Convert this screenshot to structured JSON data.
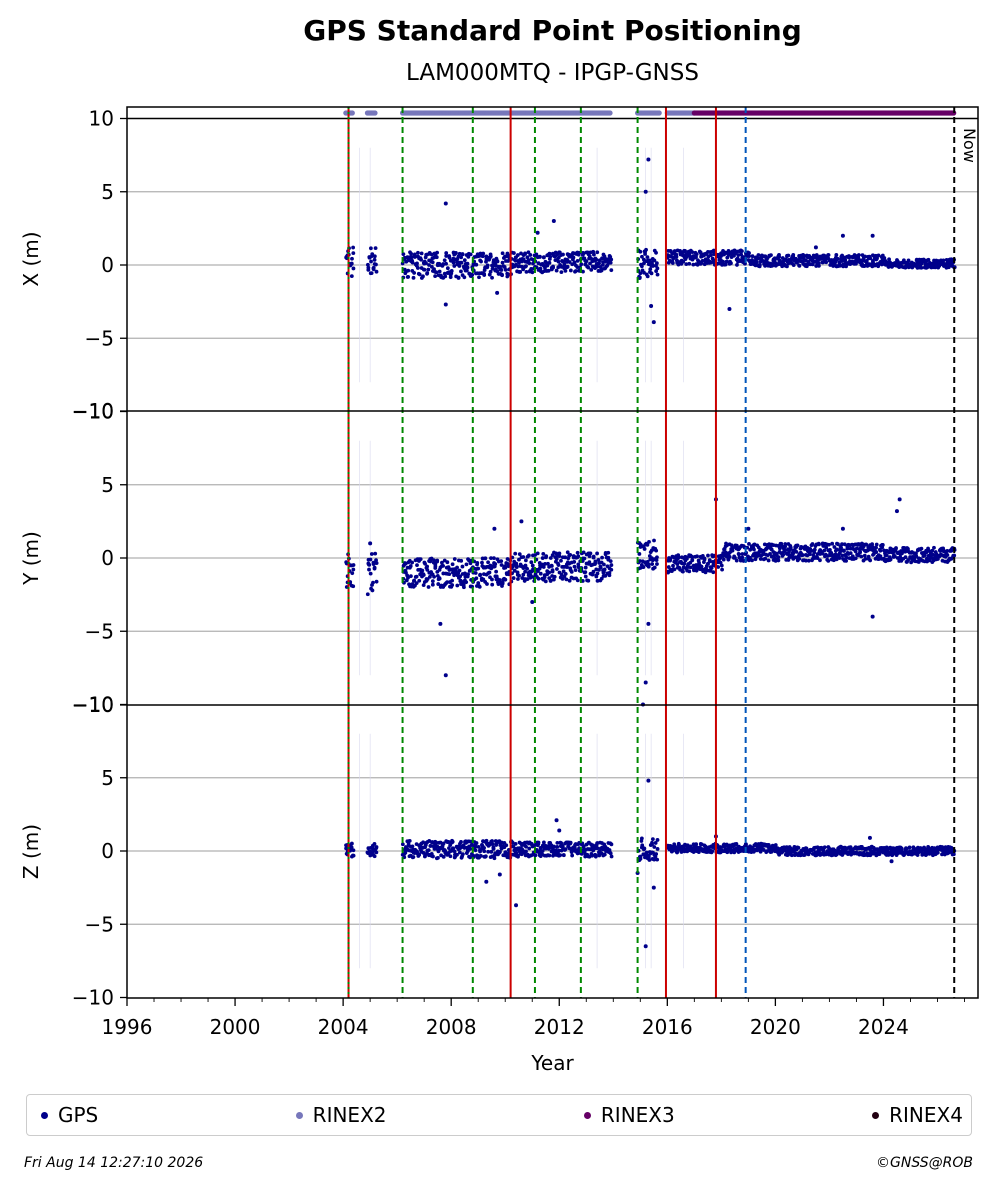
{
  "chart_data": {
    "type": "scatter",
    "title": "GPS Standard Point Positioning",
    "subtitle": "LAM000MTQ - IPGP-GNSS",
    "xlabel": "Year",
    "xlim": [
      1996,
      2027.5
    ],
    "x_ticks": [
      "1996",
      "2000",
      "2004",
      "2008",
      "2012",
      "2016",
      "2020",
      "2024"
    ],
    "now_label": "Now",
    "now_year": 2026.62,
    "grid": true,
    "legend_placement": "bottom",
    "panels": [
      {
        "id": "x",
        "ylabel": "X (m)",
        "ylim": [
          -10,
          10
        ],
        "y_ticks": [
          "10",
          "5",
          "0",
          "−5",
          "−10"
        ]
      },
      {
        "id": "y",
        "ylabel": "Y (m)",
        "ylim": [
          -10,
          10
        ],
        "y_ticks": [
          "5",
          "0",
          "−5",
          "−10"
        ]
      },
      {
        "id": "z",
        "ylabel": "Z (m)",
        "ylim": [
          -10,
          10
        ],
        "y_ticks": [
          "5",
          "0",
          "−5",
          "−10"
        ]
      }
    ],
    "event_lines": [
      {
        "year": 2004.2,
        "color": "#cc0000",
        "style": "dotted-red-green"
      },
      {
        "year": 2006.2,
        "color": "#008800",
        "style": "dashed"
      },
      {
        "year": 2008.8,
        "color": "#008800",
        "style": "dashed"
      },
      {
        "year": 2010.2,
        "color": "#cc0000",
        "style": "solid"
      },
      {
        "year": 2011.1,
        "color": "#008800",
        "style": "dashed"
      },
      {
        "year": 2012.8,
        "color": "#008800",
        "style": "dashed"
      },
      {
        "year": 2014.9,
        "color": "#008800",
        "style": "dashed"
      },
      {
        "year": 2015.95,
        "color": "#cc0000",
        "style": "solid"
      },
      {
        "year": 2017.8,
        "color": "#cc0000",
        "style": "solid"
      },
      {
        "year": 2018.9,
        "color": "#0055bb",
        "style": "dashed"
      },
      {
        "year": 2026.62,
        "color": "#000000",
        "style": "dashed"
      }
    ],
    "data_segments": [
      {
        "from": 2004.1,
        "to": 2004.35
      },
      {
        "from": 2004.9,
        "to": 2005.2
      },
      {
        "from": 2006.2,
        "to": 2013.9
      },
      {
        "from": 2014.9,
        "to": 2015.6
      },
      {
        "from": 2016.0,
        "to": 2026.6
      }
    ],
    "series": [
      {
        "name": "GPS",
        "color": "#00008b",
        "x_profile": [
          [
            2004.2,
            0.2,
            1.0
          ],
          [
            2006.2,
            0.0,
            0.9
          ],
          [
            2010.2,
            0.2,
            0.7
          ],
          [
            2014.9,
            0.1,
            1.0
          ],
          [
            2016.0,
            0.5,
            0.5
          ],
          [
            2019.0,
            0.3,
            0.4
          ],
          [
            2024.0,
            0.1,
            0.3
          ]
        ],
        "y_profile": [
          [
            2004.2,
            -1.0,
            1.5
          ],
          [
            2006.2,
            -1.0,
            1.0
          ],
          [
            2010.2,
            -0.6,
            1.0
          ],
          [
            2014.9,
            0.2,
            1.0
          ],
          [
            2016.0,
            -0.4,
            0.6
          ],
          [
            2018.0,
            0.4,
            0.6
          ],
          [
            2024.0,
            0.2,
            0.5
          ]
        ],
        "z_profile": [
          [
            2004.2,
            0.1,
            0.5
          ],
          [
            2006.2,
            0.1,
            0.6
          ],
          [
            2010.2,
            0.1,
            0.5
          ],
          [
            2014.9,
            0.1,
            0.8
          ],
          [
            2016.0,
            0.2,
            0.3
          ],
          [
            2020.0,
            0.0,
            0.3
          ],
          [
            2024.0,
            0.0,
            0.3
          ]
        ],
        "outliers": {
          "x": [
            [
              2007.8,
              4.2
            ],
            [
              2007.8,
              -2.7
            ],
            [
              2011.8,
              3.0
            ],
            [
              2015.3,
              7.2
            ],
            [
              2015.2,
              5.0
            ],
            [
              2015.4,
              -2.8
            ],
            [
              2015.5,
              -3.9
            ],
            [
              2018.3,
              -3.0
            ],
            [
              2022.5,
              2.0
            ],
            [
              2023.6,
              2.0
            ],
            [
              2009.7,
              -1.9
            ],
            [
              2011.2,
              2.2
            ],
            [
              2021.5,
              1.2
            ]
          ],
          "y": [
            [
              2007.8,
              -8.0
            ],
            [
              2007.6,
              -4.5
            ],
            [
              2009.6,
              2.0
            ],
            [
              2010.6,
              2.5
            ],
            [
              2015.2,
              -8.5
            ],
            [
              2015.1,
              -10.0
            ],
            [
              2015.3,
              -4.5
            ],
            [
              2017.8,
              4.0
            ],
            [
              2019.0,
              2.0
            ],
            [
              2023.6,
              -4.0
            ],
            [
              2024.6,
              4.0
            ],
            [
              2024.5,
              3.2
            ],
            [
              2005.0,
              1.0
            ],
            [
              2011.0,
              -3.0
            ],
            [
              2022.5,
              2.0
            ]
          ],
          "z": [
            [
              2010.4,
              -3.7
            ],
            [
              2015.3,
              4.8
            ],
            [
              2015.2,
              -6.5
            ],
            [
              2015.5,
              -2.5
            ],
            [
              2009.3,
              -2.1
            ],
            [
              2011.9,
              2.1
            ],
            [
              2014.9,
              -1.5
            ],
            [
              2017.8,
              1.0
            ],
            [
              2023.5,
              0.9
            ],
            [
              2024.3,
              -0.7
            ],
            [
              2009.8,
              -1.6
            ],
            [
              2012.0,
              1.4
            ]
          ]
        }
      },
      {
        "name": "RINEX2",
        "color": "#7777bb",
        "ranges": [
          [
            2004.1,
            2004.35
          ],
          [
            2004.9,
            2005.2
          ],
          [
            2006.2,
            2013.9
          ],
          [
            2014.9,
            2015.7
          ],
          [
            2016.0,
            2017.0
          ]
        ]
      },
      {
        "name": "RINEX3",
        "color": "#660066",
        "ranges": [
          [
            2017.0,
            2026.6
          ]
        ]
      },
      {
        "name": "RINEX4",
        "color": "#220011",
        "ranges": []
      }
    ]
  },
  "footer": {
    "date": "Fri Aug 14 12:27:10 2026",
    "copyright": "©GNSS@ROB"
  }
}
